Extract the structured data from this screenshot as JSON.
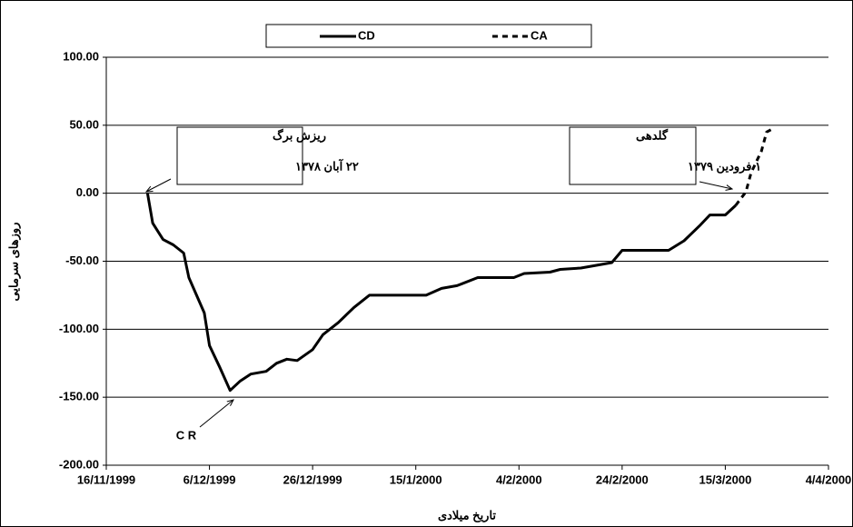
{
  "chart_data": {
    "type": "line",
    "x_label": "تاریخ میلادی",
    "y_label": "روزهای سرمایی",
    "legend": "top",
    "grid": true,
    "xlim": [
      "16/11/1999",
      "4/4/2000"
    ],
    "xticks": [
      "16/11/1999",
      "6/12/1999",
      "26/12/1999",
      "15/1/2000",
      "4/2/2000",
      "24/2/2000",
      "15/3/2000",
      "4/4/2000"
    ],
    "ylim": [
      -200,
      100
    ],
    "yticks": [
      {
        "value": -200,
        "label": "-200.00"
      },
      {
        "value": -150,
        "label": "-150.00"
      },
      {
        "value": -100,
        "label": "-100.00"
      },
      {
        "value": -50,
        "label": "-50.00"
      },
      {
        "value": 0,
        "label": "0.00"
      },
      {
        "value": 50,
        "label": "50.00"
      },
      {
        "value": 100,
        "label": "100.00"
      }
    ],
    "series": [
      {
        "name": "CD",
        "color": "#000000",
        "dash": false,
        "x": [
          "24/11/1999",
          "25/11/1999",
          "27/11/1999",
          "29/11/1999",
          "1/12/1999",
          "2/12/1999",
          "5/12/1999",
          "6/12/1999",
          "8/12/1999",
          "10/12/1999",
          "12/12/1999",
          "14/12/1999",
          "17/12/1999",
          "19/12/1999",
          "21/12/1999",
          "23/12/1999",
          "26/12/1999",
          "28/12/1999",
          "31/12/1999",
          "3/1/2000",
          "6/1/2000",
          "17/1/2000",
          "20/1/2000",
          "23/1/2000",
          "27/1/2000",
          "3/2/2000",
          "5/2/2000",
          "10/2/2000",
          "12/2/2000",
          "16/2/2000",
          "19/2/2000",
          "22/2/2000",
          "24/2/2000",
          "4/3/2000",
          "7/3/2000",
          "10/3/2000",
          "12/3/2000",
          "15/3/2000",
          "17/3/2000"
        ],
        "values": [
          0,
          -22,
          -34,
          -38,
          -44,
          -62,
          -88,
          -112,
          -128,
          -145,
          -138,
          -133,
          -131,
          -125,
          -122,
          -123,
          -115,
          -104,
          -95,
          -84,
          -75,
          -75,
          -70,
          -68,
          -62,
          -62,
          -59,
          -58,
          -56,
          -55,
          -53,
          -51,
          -42,
          -42,
          -35,
          -24,
          -16,
          -16,
          -9
        ]
      },
      {
        "name": "CA",
        "color": "#000000",
        "dash": true,
        "x": [
          "17/3/2000",
          "19/3/2000",
          "20/3/2000",
          "22/3/2000",
          "23/3/2000",
          "24/3/2000"
        ],
        "values": [
          -9,
          1,
          15,
          31,
          45,
          47
        ]
      }
    ],
    "annotations": [
      {
        "text": "ریزش برگ"
      },
      {
        "text": "۲۲ آبان ۱۳۷۸"
      },
      {
        "text": "گلدهی"
      },
      {
        "text": "۱ فرودین ۱۳۷۹"
      },
      {
        "text": "C R"
      }
    ]
  }
}
